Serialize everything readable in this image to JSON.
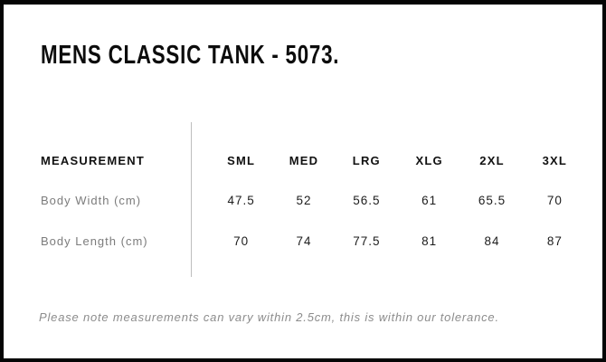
{
  "page": {
    "title": "MENS CLASSIC TANK - 5073.",
    "footer_note": "Please note measurements can vary within 2.5cm, this is within our tolerance."
  },
  "size_chart": {
    "measurement_header": "MEASUREMENT",
    "size_headers": [
      "SML",
      "MED",
      "LRG",
      "XLG",
      "2XL",
      "3XL"
    ],
    "rows": [
      {
        "label": "Body Width (cm)",
        "values": [
          "47.5",
          "52",
          "56.5",
          "61",
          "65.5",
          "70"
        ]
      },
      {
        "label": "Body Length (cm)",
        "values": [
          "70",
          "74",
          "77.5",
          "81",
          "84",
          "87"
        ]
      }
    ]
  },
  "chart_data": {
    "type": "table",
    "title": "MENS CLASSIC TANK - 5073.",
    "columns": [
      "MEASUREMENT",
      "SML",
      "MED",
      "LRG",
      "XLG",
      "2XL",
      "3XL"
    ],
    "rows": [
      [
        "Body Width (cm)",
        47.5,
        52,
        56.5,
        61,
        65.5,
        70
      ],
      [
        "Body Length (cm)",
        70,
        74,
        77.5,
        81,
        84,
        87
      ]
    ],
    "note": "Please note measurements can vary within 2.5cm, this is within our tolerance."
  },
  "colors": {
    "background": "#ffffff",
    "frame_border": "#050505",
    "title_text": "#0c0c0c",
    "header_text": "#111111",
    "value_text": "#1d1d1d",
    "row_label_gray": "#7c7c7c",
    "note_gray": "#8c8c8c",
    "divider_gray": "#bdbdbd"
  }
}
